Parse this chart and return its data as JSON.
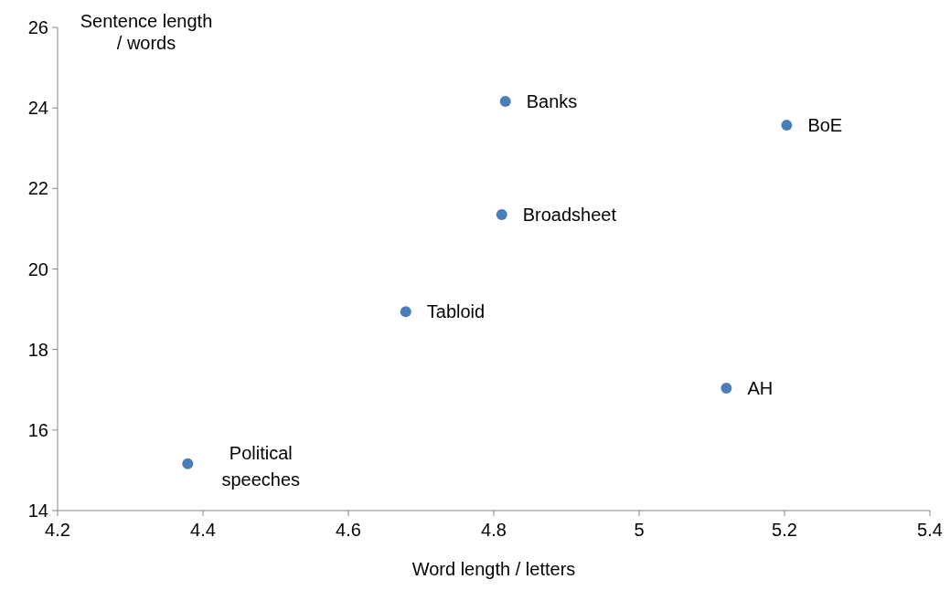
{
  "chart_data": {
    "type": "scatter",
    "xlabel": "Word length / letters",
    "ylabel": "Sentence length / words",
    "x": [
      4.816,
      5.203,
      4.811,
      4.679,
      5.12,
      4.379
    ],
    "values": [
      24.16,
      23.57,
      21.35,
      18.94,
      17.04,
      15.16
    ],
    "color": "#4a7ebb",
    "marker": "circle",
    "grid": false,
    "xlim": [
      4.2,
      5.4
    ],
    "xticks": [
      4.2,
      4.4,
      4.6,
      4.8,
      5,
      5.2,
      5.4
    ],
    "ylim": [
      14,
      26
    ],
    "yticks": [
      14,
      16,
      18,
      20,
      22,
      24,
      26
    ],
    "annotations": [
      {
        "text": "Banks",
        "x": 4.816,
        "y": 24.16
      },
      {
        "text": "BoE",
        "x": 5.203,
        "y": 23.57
      },
      {
        "text": "Broadsheet",
        "x": 4.811,
        "y": 21.35
      },
      {
        "text": "Tabloid",
        "x": 4.679,
        "y": 18.94
      },
      {
        "text": "AH",
        "x": 5.12,
        "y": 17.04
      },
      {
        "text": "Political speeches",
        "x": 4.379,
        "y": 15.16
      }
    ]
  }
}
